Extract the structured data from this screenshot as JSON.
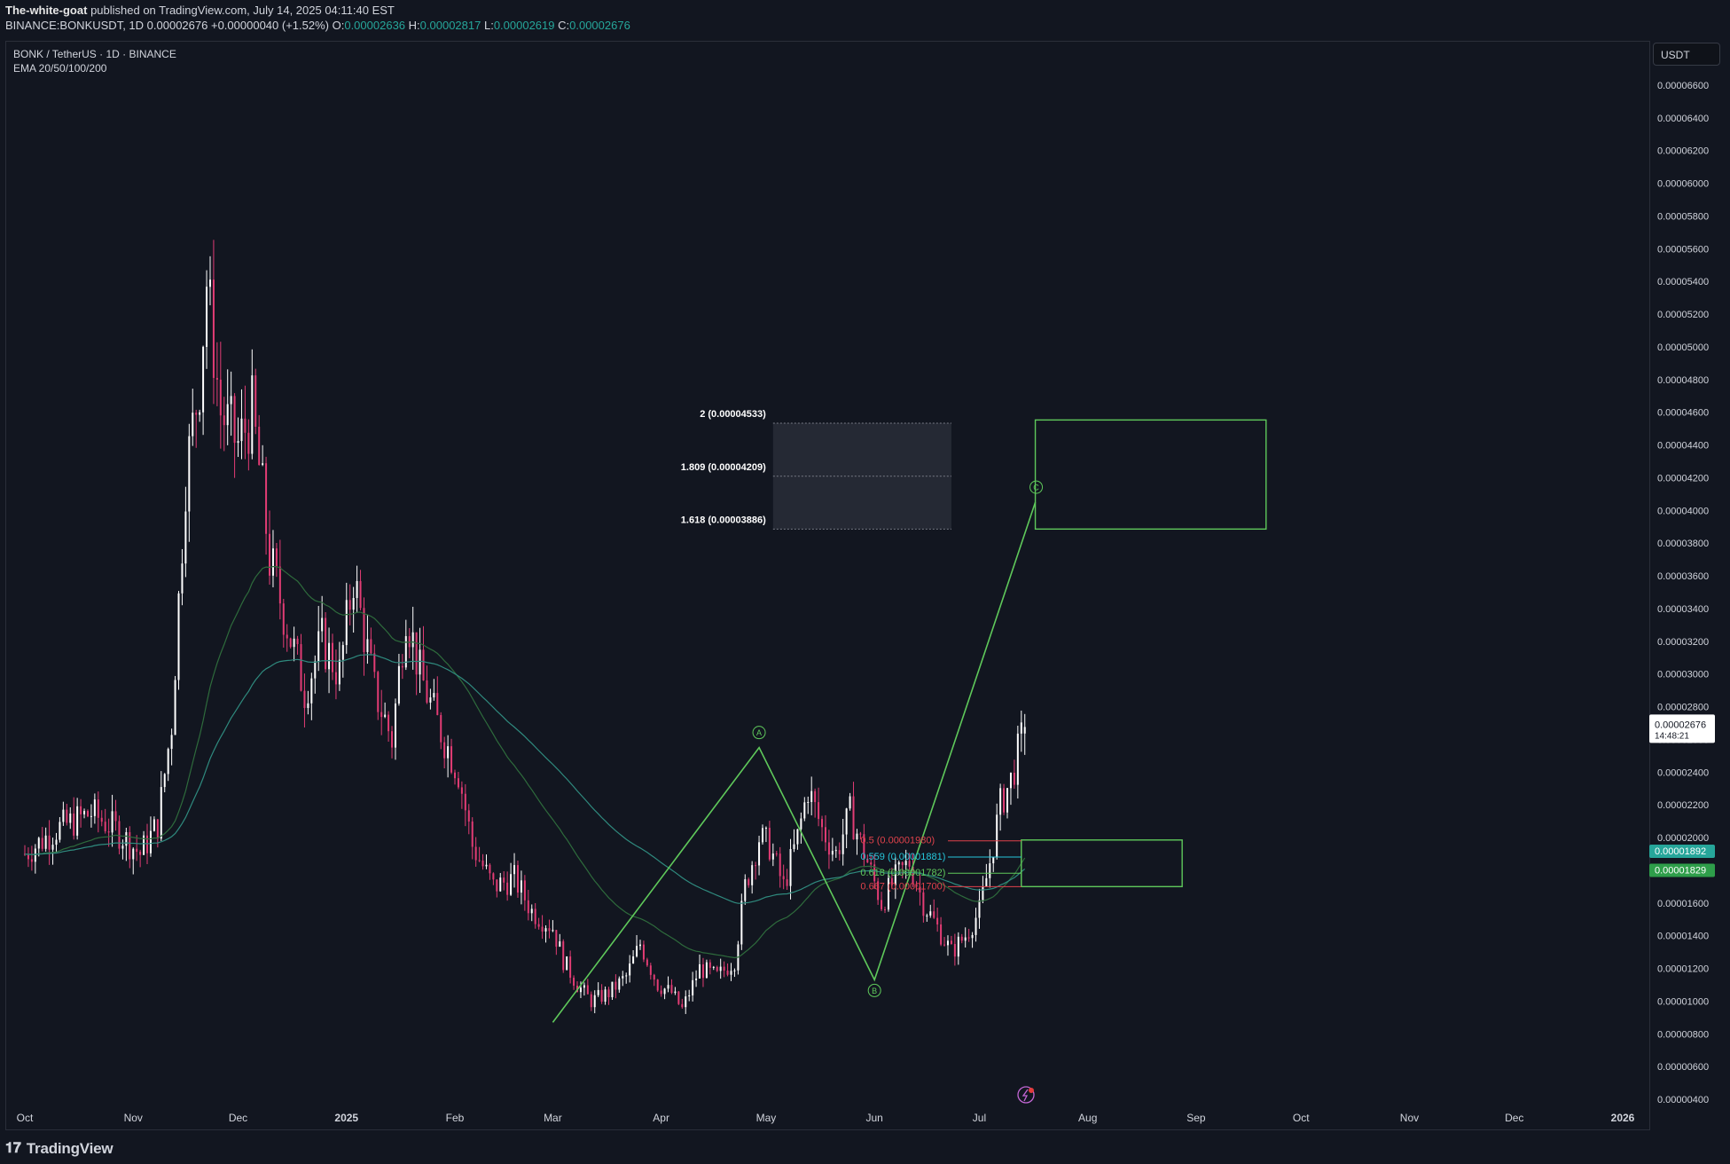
{
  "header": {
    "author": "The-white-goat",
    "published_text": "published on TradingView.com, July 14, 2025 04:11:40 EST",
    "symbol_line": "BINANCE:BONKUSDT, 1D",
    "last": "0.00002676",
    "change": "+0.00000040 (+1.52%)",
    "o_label": "O:",
    "o_value": "0.00002636",
    "h_label": "H:",
    "h_value": "0.00002817",
    "l_label": "L:",
    "l_value": "0.00002619",
    "c_label": "C:",
    "c_value": "0.00002676"
  },
  "legend": {
    "pair": "BONK / TetherUS · 1D · BINANCE",
    "indicator": "EMA 20/50/100/200"
  },
  "currency_button": "USDT",
  "footer": {
    "brand": "TradingView"
  },
  "colors": {
    "background": "#121620",
    "up": "#ffffff",
    "down": "#e23c74",
    "ema_fast": "#2e6b3c",
    "ema_slow": "#2f8a7e",
    "pattern": "#5fc95b",
    "fib_red": "#e0424b",
    "fib_cyan": "#26c6da",
    "fib_green": "#5fc95b"
  },
  "chart_data": {
    "type": "candlestick",
    "title": "BONK / TetherUS · 1D · BINANCE",
    "y_axis": {
      "min": 4e-06,
      "max": 6.6e-05,
      "ticks": [
        "0.00006600",
        "0.00006400",
        "0.00006200",
        "0.00006000",
        "0.00005800",
        "0.00005600",
        "0.00005400",
        "0.00005200",
        "0.00005000",
        "0.00004800",
        "0.00004600",
        "0.00004400",
        "0.00004200",
        "0.00004000",
        "0.00003800",
        "0.00003600",
        "0.00003400",
        "0.00003200",
        "0.00003000",
        "0.00002800",
        "0.00002600",
        "0.00002400",
        "0.00002200",
        "0.00002000",
        "0.00001800",
        "0.00001600",
        "0.00001400",
        "0.00001200",
        "0.00001000",
        "0.00000800",
        "0.00000600",
        "0.00000400"
      ]
    },
    "x_axis": {
      "ticks": [
        "Oct",
        "Nov",
        "Dec",
        "2025",
        "Feb",
        "Mar",
        "Apr",
        "May",
        "Jun",
        "Jul",
        "Aug",
        "Sep",
        "Oct",
        "Nov",
        "Dec",
        "2026"
      ],
      "tick_dates": [
        "2024-10-01",
        "2024-11-01",
        "2024-12-01",
        "2025-01-01",
        "2025-02-01",
        "2025-03-01",
        "2025-04-01",
        "2025-05-01",
        "2025-06-01",
        "2025-07-01",
        "2025-08-01",
        "2025-09-01",
        "2025-10-01",
        "2025-11-01",
        "2025-12-01",
        "2026-01-01"
      ]
    },
    "price_badges": [
      {
        "value": "0.00002676",
        "sub": "14:48:21",
        "kind": "last"
      },
      {
        "value": "0.00001892",
        "kind": "ema_slow"
      },
      {
        "value": "0.00001829",
        "kind": "ema_fast"
      }
    ],
    "path_points": [
      [
        "2024-10-01",
        1.9e-05
      ],
      [
        "2024-10-10",
        2.05e-05
      ],
      [
        "2024-10-20",
        2.15e-05
      ],
      [
        "2024-10-27",
        2.05e-05
      ],
      [
        "2024-11-03",
        1.9e-05
      ],
      [
        "2024-11-08",
        2.08e-05
      ],
      [
        "2024-11-12",
        2.7e-05
      ],
      [
        "2024-11-16",
        4.2e-05
      ],
      [
        "2024-11-20",
        4.8e-05
      ],
      [
        "2024-11-22",
        5.4e-05
      ],
      [
        "2024-11-26",
        4.6e-05
      ],
      [
        "2024-12-01",
        4.4e-05
      ],
      [
        "2024-12-05",
        4.6e-05
      ],
      [
        "2024-12-08",
        4.1e-05
      ],
      [
        "2024-12-10",
        3.7e-05
      ],
      [
        "2024-12-15",
        3.3e-05
      ],
      [
        "2024-12-20",
        2.9e-05
      ],
      [
        "2024-12-25",
        3.2e-05
      ],
      [
        "2024-12-30",
        3e-05
      ],
      [
        "2025-01-03",
        3.6e-05
      ],
      [
        "2025-01-09",
        2.9e-05
      ],
      [
        "2025-01-14",
        2.6e-05
      ],
      [
        "2025-01-18",
        3.4e-05
      ],
      [
        "2025-01-22",
        3e-05
      ],
      [
        "2025-01-27",
        2.7e-05
      ],
      [
        "2025-02-02",
        2.4e-05
      ],
      [
        "2025-02-06",
        1.95e-05
      ],
      [
        "2025-02-12",
        1.7e-05
      ],
      [
        "2025-02-18",
        1.75e-05
      ],
      [
        "2025-02-23",
        1.55e-05
      ],
      [
        "2025-03-01",
        1.45e-05
      ],
      [
        "2025-03-04",
        1.25e-05
      ],
      [
        "2025-03-08",
        1.1e-05
      ],
      [
        "2025-03-12",
        1e-05
      ],
      [
        "2025-03-17",
        1.05e-05
      ],
      [
        "2025-03-22",
        1.15e-05
      ],
      [
        "2025-03-26",
        1.35e-05
      ],
      [
        "2025-03-31",
        1.1e-05
      ],
      [
        "2025-04-04",
        1.05e-05
      ],
      [
        "2025-04-07",
        9.5e-06
      ],
      [
        "2025-04-12",
        1.2e-05
      ],
      [
        "2025-04-17",
        1.15e-05
      ],
      [
        "2025-04-22",
        1.25e-05
      ],
      [
        "2025-04-25",
        1.7e-05
      ],
      [
        "2025-04-29",
        2e-05
      ],
      [
        "2025-05-02",
        1.95e-05
      ],
      [
        "2025-05-06",
        1.7e-05
      ],
      [
        "2025-05-10",
        2e-05
      ],
      [
        "2025-05-13",
        2.3e-05
      ],
      [
        "2025-05-17",
        2.05e-05
      ],
      [
        "2025-05-21",
        1.9e-05
      ],
      [
        "2025-05-25",
        2.15e-05
      ],
      [
        "2025-05-30",
        1.85e-05
      ],
      [
        "2025-06-03",
        1.6e-05
      ],
      [
        "2025-06-07",
        1.75e-05
      ],
      [
        "2025-06-11",
        1.85e-05
      ],
      [
        "2025-06-15",
        1.6e-05
      ],
      [
        "2025-06-19",
        1.45e-05
      ],
      [
        "2025-06-23",
        1.3e-05
      ],
      [
        "2025-06-27",
        1.4e-05
      ],
      [
        "2025-07-01",
        1.55e-05
      ],
      [
        "2025-07-04",
        1.85e-05
      ],
      [
        "2025-07-07",
        2.2e-05
      ],
      [
        "2025-07-10",
        2.35e-05
      ],
      [
        "2025-07-14",
        2.68e-05
      ]
    ],
    "pattern": {
      "type": "ABC",
      "points": [
        {
          "date": "2025-03-01",
          "price": 8.7e-06,
          "label": ""
        },
        {
          "date": "2025-04-29",
          "price": 2.55e-05,
          "label": "A"
        },
        {
          "date": "2025-06-01",
          "price": 1.13e-05,
          "label": "B"
        },
        {
          "date": "2025-07-17",
          "price": 4.05e-05,
          "label": "C"
        }
      ]
    },
    "fib_extension": {
      "levels": [
        {
          "ratio": "2",
          "price": "0.00004533",
          "text": "2 (0.00004533)"
        },
        {
          "ratio": "1.809",
          "price": "0.00004209",
          "text": "1.809 (0.00004209)"
        },
        {
          "ratio": "1.618",
          "price": "0.00003886",
          "text": "1.618 (0.00003886)"
        }
      ]
    },
    "fib_retracement": {
      "levels": [
        {
          "ratio": "0.5",
          "price": "0.00001980",
          "text": "0.5 (0.00001980)",
          "color": "red"
        },
        {
          "ratio": "0.559",
          "price": "0.00001881",
          "text": "0.559 (0.00001881)",
          "color": "cyan"
        },
        {
          "ratio": "0.618",
          "price": "0.00001782",
          "text": "0.618 (0.00001782)",
          "color": "green"
        },
        {
          "ratio": "0.667",
          "price": "0.00001700",
          "text": "0.667 (0.00001700)",
          "color": "red"
        }
      ]
    },
    "target_zones": [
      {
        "from_date": "2025-07-17",
        "to_date": "2025-09-21",
        "top": 4.553e-05,
        "bottom": 3.886e-05
      },
      {
        "from_date": "2025-07-13",
        "to_date": "2025-08-28",
        "top": 1.985e-05,
        "bottom": 1.7e-05
      }
    ]
  }
}
